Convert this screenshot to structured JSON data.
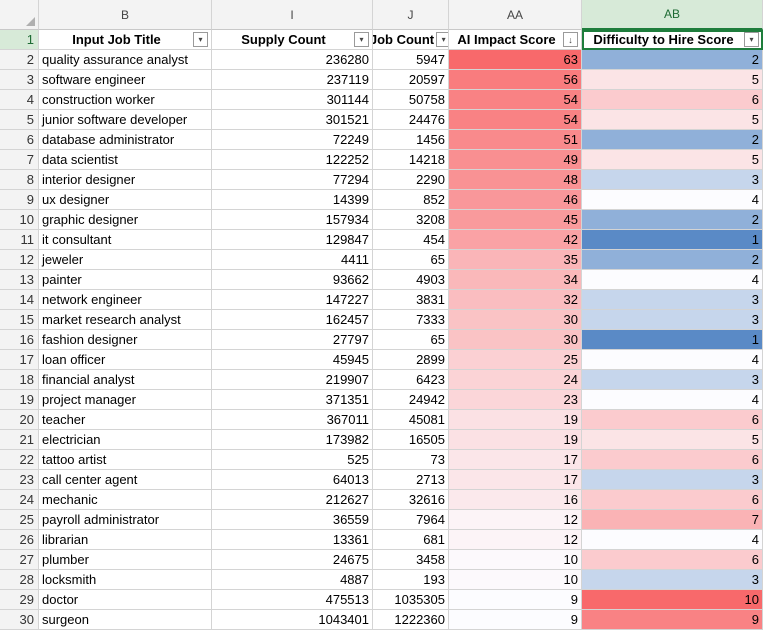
{
  "columns": {
    "rn": "",
    "b": "B",
    "i": "I",
    "j": "J",
    "aa": "AA",
    "ab": "AB"
  },
  "header_row": {
    "row_number": "1",
    "b": "Input Job Title",
    "i": "Supply Count",
    "j": "Job Count",
    "aa": "AI Impact Score",
    "ab": "Difficulty to Hire Score"
  },
  "filter_icons": {
    "b": "▾",
    "i": "▾",
    "j": "▾",
    "aa": "↓",
    "ab": "▾"
  },
  "colors": {
    "ai_max": "#f8696b",
    "ai_min": "#fcfcff",
    "hire_low": "#5a8ac6",
    "hire_mid": "#fcfcff",
    "hire_high": "#f8696b",
    "selected_header": "#d7ead8"
  },
  "rows": [
    {
      "rn": "2",
      "b": "quality assurance analyst",
      "i": "236280",
      "j": "5947",
      "aa": "63",
      "ab": "2"
    },
    {
      "rn": "3",
      "b": "software engineer",
      "i": "237119",
      "j": "20597",
      "aa": "56",
      "ab": "5"
    },
    {
      "rn": "4",
      "b": "construction worker",
      "i": "301144",
      "j": "50758",
      "aa": "54",
      "ab": "6"
    },
    {
      "rn": "5",
      "b": "junior software developer",
      "i": "301521",
      "j": "24476",
      "aa": "54",
      "ab": "5"
    },
    {
      "rn": "6",
      "b": "database administrator",
      "i": "72249",
      "j": "1456",
      "aa": "51",
      "ab": "2"
    },
    {
      "rn": "7",
      "b": "data scientist",
      "i": "122252",
      "j": "14218",
      "aa": "49",
      "ab": "5"
    },
    {
      "rn": "8",
      "b": "interior designer",
      "i": "77294",
      "j": "2290",
      "aa": "48",
      "ab": "3"
    },
    {
      "rn": "9",
      "b": "ux designer",
      "i": "14399",
      "j": "852",
      "aa": "46",
      "ab": "4"
    },
    {
      "rn": "10",
      "b": "graphic designer",
      "i": "157934",
      "j": "3208",
      "aa": "45",
      "ab": "2"
    },
    {
      "rn": "11",
      "b": "it consultant",
      "i": "129847",
      "j": "454",
      "aa": "42",
      "ab": "1"
    },
    {
      "rn": "12",
      "b": "jeweler",
      "i": "4411",
      "j": "65",
      "aa": "35",
      "ab": "2"
    },
    {
      "rn": "13",
      "b": "painter",
      "i": "93662",
      "j": "4903",
      "aa": "34",
      "ab": "4"
    },
    {
      "rn": "14",
      "b": "network engineer",
      "i": "147227",
      "j": "3831",
      "aa": "32",
      "ab": "3"
    },
    {
      "rn": "15",
      "b": "market research analyst",
      "i": "162457",
      "j": "7333",
      "aa": "30",
      "ab": "3"
    },
    {
      "rn": "16",
      "b": "fashion designer",
      "i": "27797",
      "j": "65",
      "aa": "30",
      "ab": "1"
    },
    {
      "rn": "17",
      "b": "loan officer",
      "i": "45945",
      "j": "2899",
      "aa": "25",
      "ab": "4"
    },
    {
      "rn": "18",
      "b": "financial analyst",
      "i": "219907",
      "j": "6423",
      "aa": "24",
      "ab": "3"
    },
    {
      "rn": "19",
      "b": "project manager",
      "i": "371351",
      "j": "24942",
      "aa": "23",
      "ab": "4"
    },
    {
      "rn": "20",
      "b": "teacher",
      "i": "367011",
      "j": "45081",
      "aa": "19",
      "ab": "6"
    },
    {
      "rn": "21",
      "b": "electrician",
      "i": "173982",
      "j": "16505",
      "aa": "19",
      "ab": "5"
    },
    {
      "rn": "22",
      "b": "tattoo artist",
      "i": "525",
      "j": "73",
      "aa": "17",
      "ab": "6"
    },
    {
      "rn": "23",
      "b": "call center agent",
      "i": "64013",
      "j": "2713",
      "aa": "17",
      "ab": "3"
    },
    {
      "rn": "24",
      "b": "mechanic",
      "i": "212627",
      "j": "32616",
      "aa": "16",
      "ab": "6"
    },
    {
      "rn": "25",
      "b": "payroll administrator",
      "i": "36559",
      "j": "7964",
      "aa": "12",
      "ab": "7"
    },
    {
      "rn": "26",
      "b": "librarian",
      "i": "13361",
      "j": "681",
      "aa": "12",
      "ab": "4"
    },
    {
      "rn": "27",
      "b": "plumber",
      "i": "24675",
      "j": "3458",
      "aa": "10",
      "ab": "6"
    },
    {
      "rn": "28",
      "b": "locksmith",
      "i": "4887",
      "j": "193",
      "aa": "10",
      "ab": "3"
    },
    {
      "rn": "29",
      "b": "doctor",
      "i": "475513",
      "j": "1035305",
      "aa": "9",
      "ab": "10"
    },
    {
      "rn": "30",
      "b": "surgeon",
      "i": "1043401",
      "j": "1222360",
      "aa": "9",
      "ab": "9"
    }
  ]
}
